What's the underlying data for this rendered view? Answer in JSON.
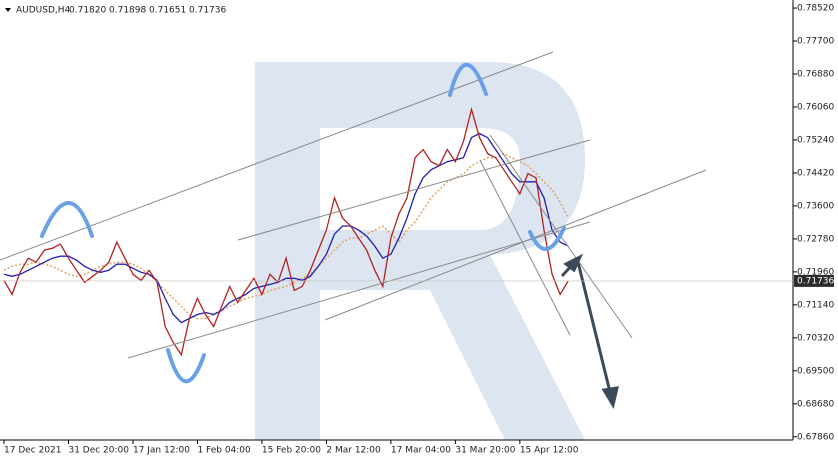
{
  "header": {
    "symbol": "AUDUSD,H4",
    "open": "0.71820",
    "high": "0.71898",
    "low": "0.71651",
    "close": "0.71736"
  },
  "chart_data": {
    "type": "line",
    "categories": [
      "17 Dec 2021",
      null,
      null,
      null,
      null,
      null,
      null,
      null,
      "31 Dec 20:00",
      null,
      null,
      null,
      null,
      null,
      null,
      null,
      "17 Jan 12:00",
      null,
      null,
      null,
      null,
      null,
      null,
      null,
      "1 Feb 04:00",
      null,
      null,
      null,
      null,
      null,
      null,
      null,
      "15 Feb 20:00",
      null,
      null,
      null,
      null,
      null,
      null,
      null,
      "2 Mar 12:00",
      null,
      null,
      null,
      null,
      null,
      null,
      null,
      "17 Mar 04:00",
      null,
      null,
      null,
      null,
      null,
      null,
      null,
      "31 Mar 20:00",
      null,
      null,
      null,
      null,
      null,
      null,
      null,
      "15 Apr 12:00",
      null,
      null,
      null,
      null,
      null,
      null
    ],
    "series": [
      {
        "color": "#b22222",
        "values": [
          0.7175,
          0.714,
          0.7195,
          0.723,
          0.722,
          0.725,
          0.7255,
          0.7265,
          0.723,
          0.72,
          0.717,
          0.7185,
          0.72,
          0.722,
          0.727,
          0.723,
          0.719,
          0.7175,
          0.72,
          0.717,
          0.706,
          0.702,
          0.699,
          0.708,
          0.713,
          0.709,
          0.706,
          0.711,
          0.716,
          0.712,
          0.715,
          0.718,
          0.714,
          0.719,
          0.717,
          0.723,
          0.715,
          0.716,
          0.72,
          0.725,
          0.73,
          0.738,
          0.733,
          0.731,
          0.728,
          0.725,
          0.72,
          0.716,
          0.728,
          0.734,
          0.738,
          0.748,
          0.75,
          0.747,
          0.746,
          0.75,
          0.747,
          0.752,
          0.76,
          0.753,
          0.749,
          0.748,
          0.745,
          0.742,
          0.739,
          0.744,
          0.743,
          0.73,
          0.719,
          0.714,
          0.71736
        ]
      },
      {
        "color": "#1f1fb4",
        "values": [
          0.719,
          0.7185,
          0.719,
          0.72,
          0.721,
          0.722,
          0.723,
          0.7235,
          0.7235,
          0.7225,
          0.721,
          0.72,
          0.7195,
          0.72,
          0.7215,
          0.7215,
          0.7205,
          0.7195,
          0.719,
          0.7175,
          0.713,
          0.709,
          0.707,
          0.708,
          0.709,
          0.7095,
          0.709,
          0.71,
          0.712,
          0.713,
          0.714,
          0.7155,
          0.716,
          0.7165,
          0.717,
          0.718,
          0.718,
          0.7175,
          0.7185,
          0.721,
          0.724,
          0.729,
          0.731,
          0.731,
          0.73,
          0.7285,
          0.726,
          0.723,
          0.724,
          0.728,
          0.733,
          0.739,
          0.743,
          0.745,
          0.746,
          0.747,
          0.7475,
          0.748,
          0.753,
          0.754,
          0.753,
          0.75,
          0.747,
          0.744,
          0.742,
          0.742,
          0.742,
          0.738,
          0.73,
          0.727,
          0.726
        ]
      },
      {
        "color": "#e0a060",
        "dashed": true,
        "values": [
          0.72,
          0.721,
          0.7215,
          0.7215,
          0.722,
          0.7215,
          0.721,
          0.72,
          0.719,
          0.7185,
          0.719,
          0.72,
          0.721,
          0.7215,
          0.722,
          0.722,
          0.7215,
          0.7205,
          0.719,
          0.717,
          0.715,
          0.713,
          0.711,
          0.709,
          0.708,
          0.708,
          0.709,
          0.71,
          0.711,
          0.712,
          0.713,
          0.7135,
          0.714,
          0.715,
          0.7155,
          0.716,
          0.717,
          0.718,
          0.719,
          0.721,
          0.723,
          0.725,
          0.727,
          0.728,
          0.728,
          0.729,
          0.73,
          0.731,
          0.729,
          0.727,
          0.73,
          0.732,
          0.735,
          0.738,
          0.74,
          0.742,
          0.743,
          0.744,
          0.746,
          0.747,
          0.748,
          0.748,
          0.749,
          0.748,
          0.747,
          0.746,
          0.744,
          0.742,
          0.74,
          0.737,
          0.733
        ]
      }
    ],
    "ylim": [
      0.6778,
      0.7872
    ],
    "yticks": [
      {
        "value": 0.7852,
        "label": "0.78520"
      },
      {
        "value": 0.777,
        "label": "0.77700"
      },
      {
        "value": 0.7688,
        "label": "0.76880"
      },
      {
        "value": 0.7606,
        "label": "0.76060"
      },
      {
        "value": 0.7524,
        "label": "0.75240"
      },
      {
        "value": 0.7442,
        "label": "0.74420"
      },
      {
        "value": 0.736,
        "label": "0.73600"
      },
      {
        "value": 0.7278,
        "label": "0.72780"
      },
      {
        "value": 0.7196,
        "label": "0.71960"
      },
      {
        "value": 0.7114,
        "label": "0.71140"
      },
      {
        "value": 0.7032,
        "label": "0.70320"
      },
      {
        "value": 0.695,
        "label": "0.69500"
      },
      {
        "value": 0.6868,
        "label": "0.68680"
      },
      {
        "value": 0.6786,
        "label": "0.67860"
      }
    ],
    "last_price": {
      "value": 0.71736,
      "label": "0.71736"
    }
  }
}
